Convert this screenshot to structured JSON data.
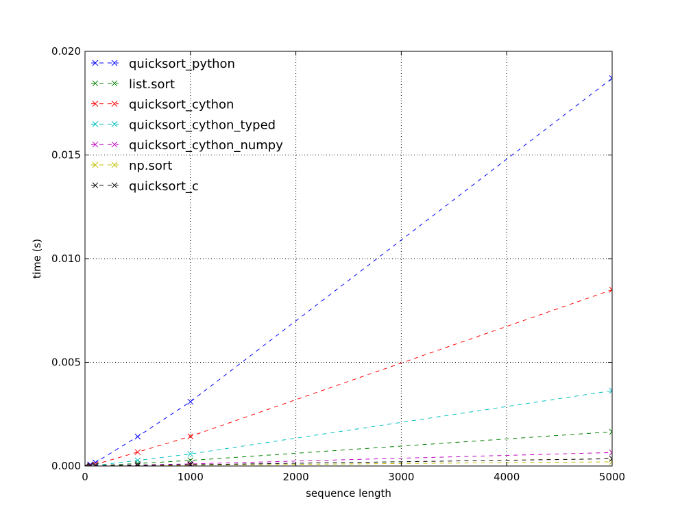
{
  "chart_data": {
    "type": "line",
    "title": "",
    "xlabel": "sequence length",
    "ylabel": "time (s)",
    "xlim": [
      0,
      5000
    ],
    "ylim": [
      0,
      0.02
    ],
    "x_ticks": [
      0,
      1000,
      2000,
      3000,
      4000,
      5000
    ],
    "x_tick_labels": [
      "0",
      "1000",
      "2000",
      "3000",
      "4000",
      "5000"
    ],
    "y_ticks": [
      0,
      0.005,
      0.01,
      0.015,
      0.02
    ],
    "y_tick_labels": [
      "0.000",
      "0.005",
      "0.010",
      "0.015",
      "0.020"
    ],
    "grid": true,
    "legend_position": "top-left",
    "x": [
      10,
      50,
      100,
      500,
      1000,
      5000
    ],
    "series": [
      {
        "name": "quicksort_python",
        "color": "#0000ff",
        "marker": "x",
        "linestyle": "dashed",
        "values": [
          1e-05,
          7e-05,
          0.00017,
          0.00142,
          0.0031,
          0.0187
        ]
      },
      {
        "name": "list.sort",
        "color": "#008000",
        "marker": "x",
        "linestyle": "dashed",
        "values": [
          0.0,
          1e-05,
          2e-05,
          0.00012,
          0.00027,
          0.00165
        ]
      },
      {
        "name": "quicksort_cython",
        "color": "#ff0000",
        "marker": "x",
        "linestyle": "dashed",
        "values": [
          1e-05,
          3e-05,
          8e-05,
          0.00067,
          0.00143,
          0.0085
        ]
      },
      {
        "name": "quicksort_cython_typed",
        "color": "#00bfbf",
        "marker": "x",
        "linestyle": "dashed",
        "values": [
          0.0,
          1e-05,
          3e-05,
          0.00027,
          0.00058,
          0.00363
        ]
      },
      {
        "name": "quicksort_cython_numpy",
        "color": "#bf00bf",
        "marker": "x",
        "linestyle": "dashed",
        "values": [
          0.0,
          0.0,
          1e-05,
          5e-05,
          0.0001,
          0.00065
        ]
      },
      {
        "name": "np.sort",
        "color": "#bfbf00",
        "marker": "x",
        "linestyle": "dashed",
        "values": [
          0.0,
          0.0,
          0.0,
          2e-05,
          4e-05,
          0.0002
        ]
      },
      {
        "name": "quicksort_c",
        "color": "#000000",
        "marker": "x",
        "linestyle": "dashed",
        "values": [
          0.0,
          0.0,
          0.0,
          3e-05,
          6e-05,
          0.00035
        ]
      }
    ]
  }
}
